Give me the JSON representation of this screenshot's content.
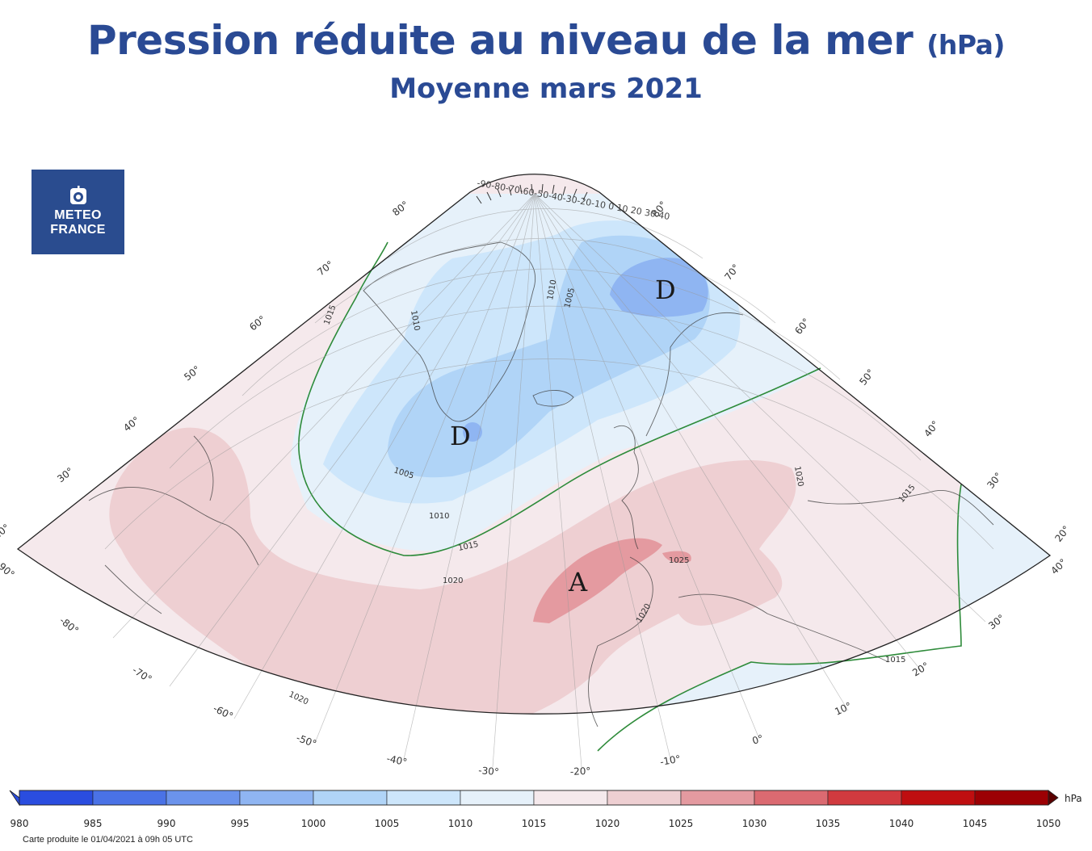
{
  "header": {
    "title": "Pression réduite au niveau de la mer",
    "title_unit": "(hPa)",
    "subtitle": "Moyenne mars 2021"
  },
  "logo": {
    "line1": "METEO",
    "line2": "FRANCE"
  },
  "map": {
    "latitude_labels": [
      "80°",
      "70°",
      "60°",
      "50°",
      "40°",
      "30°",
      "20°"
    ],
    "longitude_labels": [
      "-90°",
      "-80°",
      "-70°",
      "-60°",
      "-50°",
      "-40°",
      "-30°",
      "-20°",
      "-10°",
      "0°",
      "10°",
      "20°",
      "30°",
      "40°"
    ],
    "pole_labels": "-90-80-70-60-50-40-30-20-10 0 10 20 30 40",
    "isobar_labels": [
      "1020",
      "1020",
      "1025",
      "1020",
      "1015",
      "1010",
      "1005",
      "1010",
      "1005",
      "1010",
      "1015",
      "1020",
      "1015",
      "1015"
    ],
    "pressure_centers": [
      {
        "type": "D",
        "label": "D"
      },
      {
        "type": "D",
        "label": "D"
      },
      {
        "type": "A",
        "label": "A"
      }
    ]
  },
  "colorbar": {
    "unit": "hPa",
    "ticks": [
      "980",
      "985",
      "990",
      "995",
      "1000",
      "1005",
      "1010",
      "1015",
      "1020",
      "1025",
      "1030",
      "1035",
      "1040",
      "1045",
      "1050"
    ],
    "colors": [
      "#2a4ddf",
      "#4a72e6",
      "#6b93ec",
      "#8fb5f2",
      "#b0d4f7",
      "#cde6fb",
      "#e6f1fa",
      "#f5e9ec",
      "#eecfd2",
      "#e49aa0",
      "#db6a71",
      "#d13a3f",
      "#bf0e10",
      "#9c0004"
    ]
  },
  "footer": {
    "note": "Carte produite le 01/04/2021 à 09h 05 UTC"
  }
}
